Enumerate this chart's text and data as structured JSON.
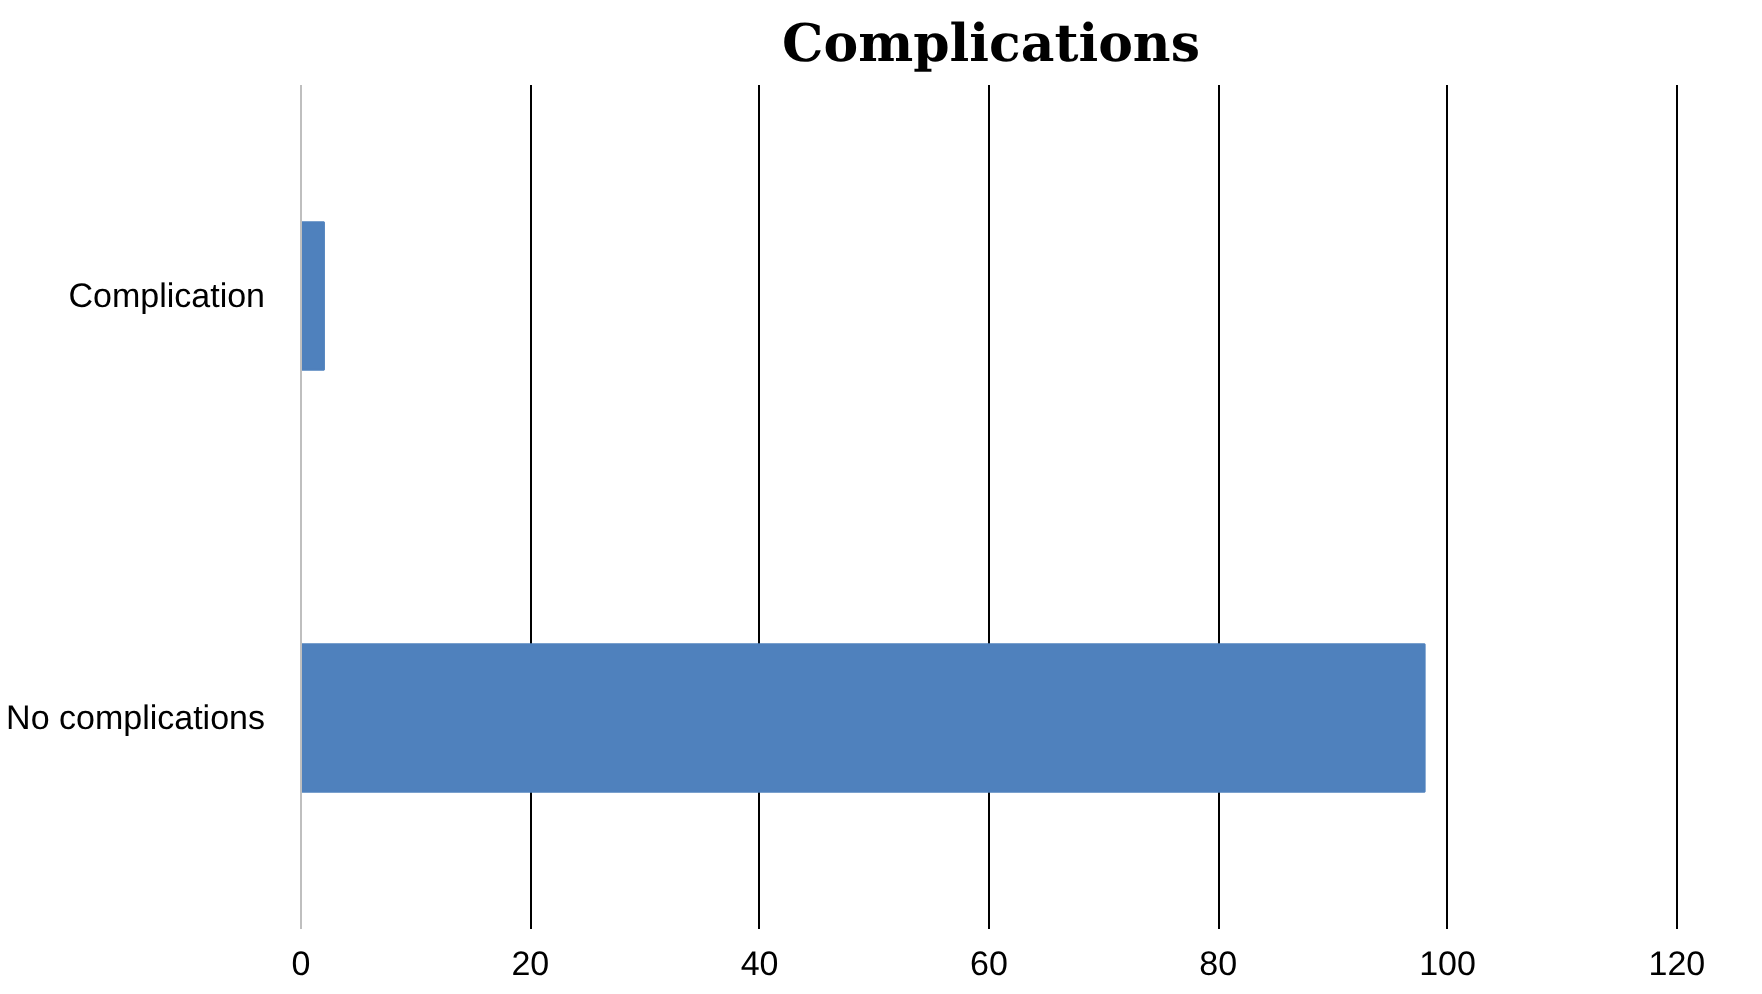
{
  "chart_data": {
    "type": "bar",
    "orientation": "horizontal",
    "title": "Complications",
    "categories": [
      "Complication",
      "No complications"
    ],
    "values": [
      2,
      98
    ],
    "color": "#4f81bd",
    "xlim": [
      0,
      120
    ],
    "xticks": [
      0,
      20,
      40,
      60,
      80,
      100,
      120
    ],
    "grid": "x"
  }
}
